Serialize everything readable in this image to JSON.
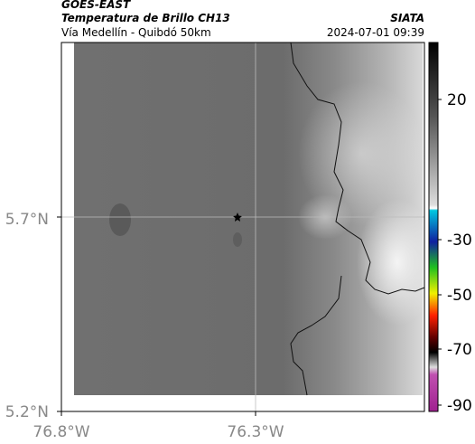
{
  "header": {
    "agency": "GOES-EAST",
    "title": "Temperatura de Brillo CH13",
    "subtitle": "Vía Medellín - Quibdó 50km",
    "source": "SIATA",
    "timestamp": "2024-07-01 09:39"
  },
  "axes": {
    "latitude_labels": [
      "5.7°N",
      "5.2°N"
    ],
    "longitude_labels": [
      "76.8°W",
      "76.3°W"
    ]
  },
  "colorbar": {
    "ticks": [
      20,
      -30,
      -50,
      -70,
      -90
    ]
  }
}
